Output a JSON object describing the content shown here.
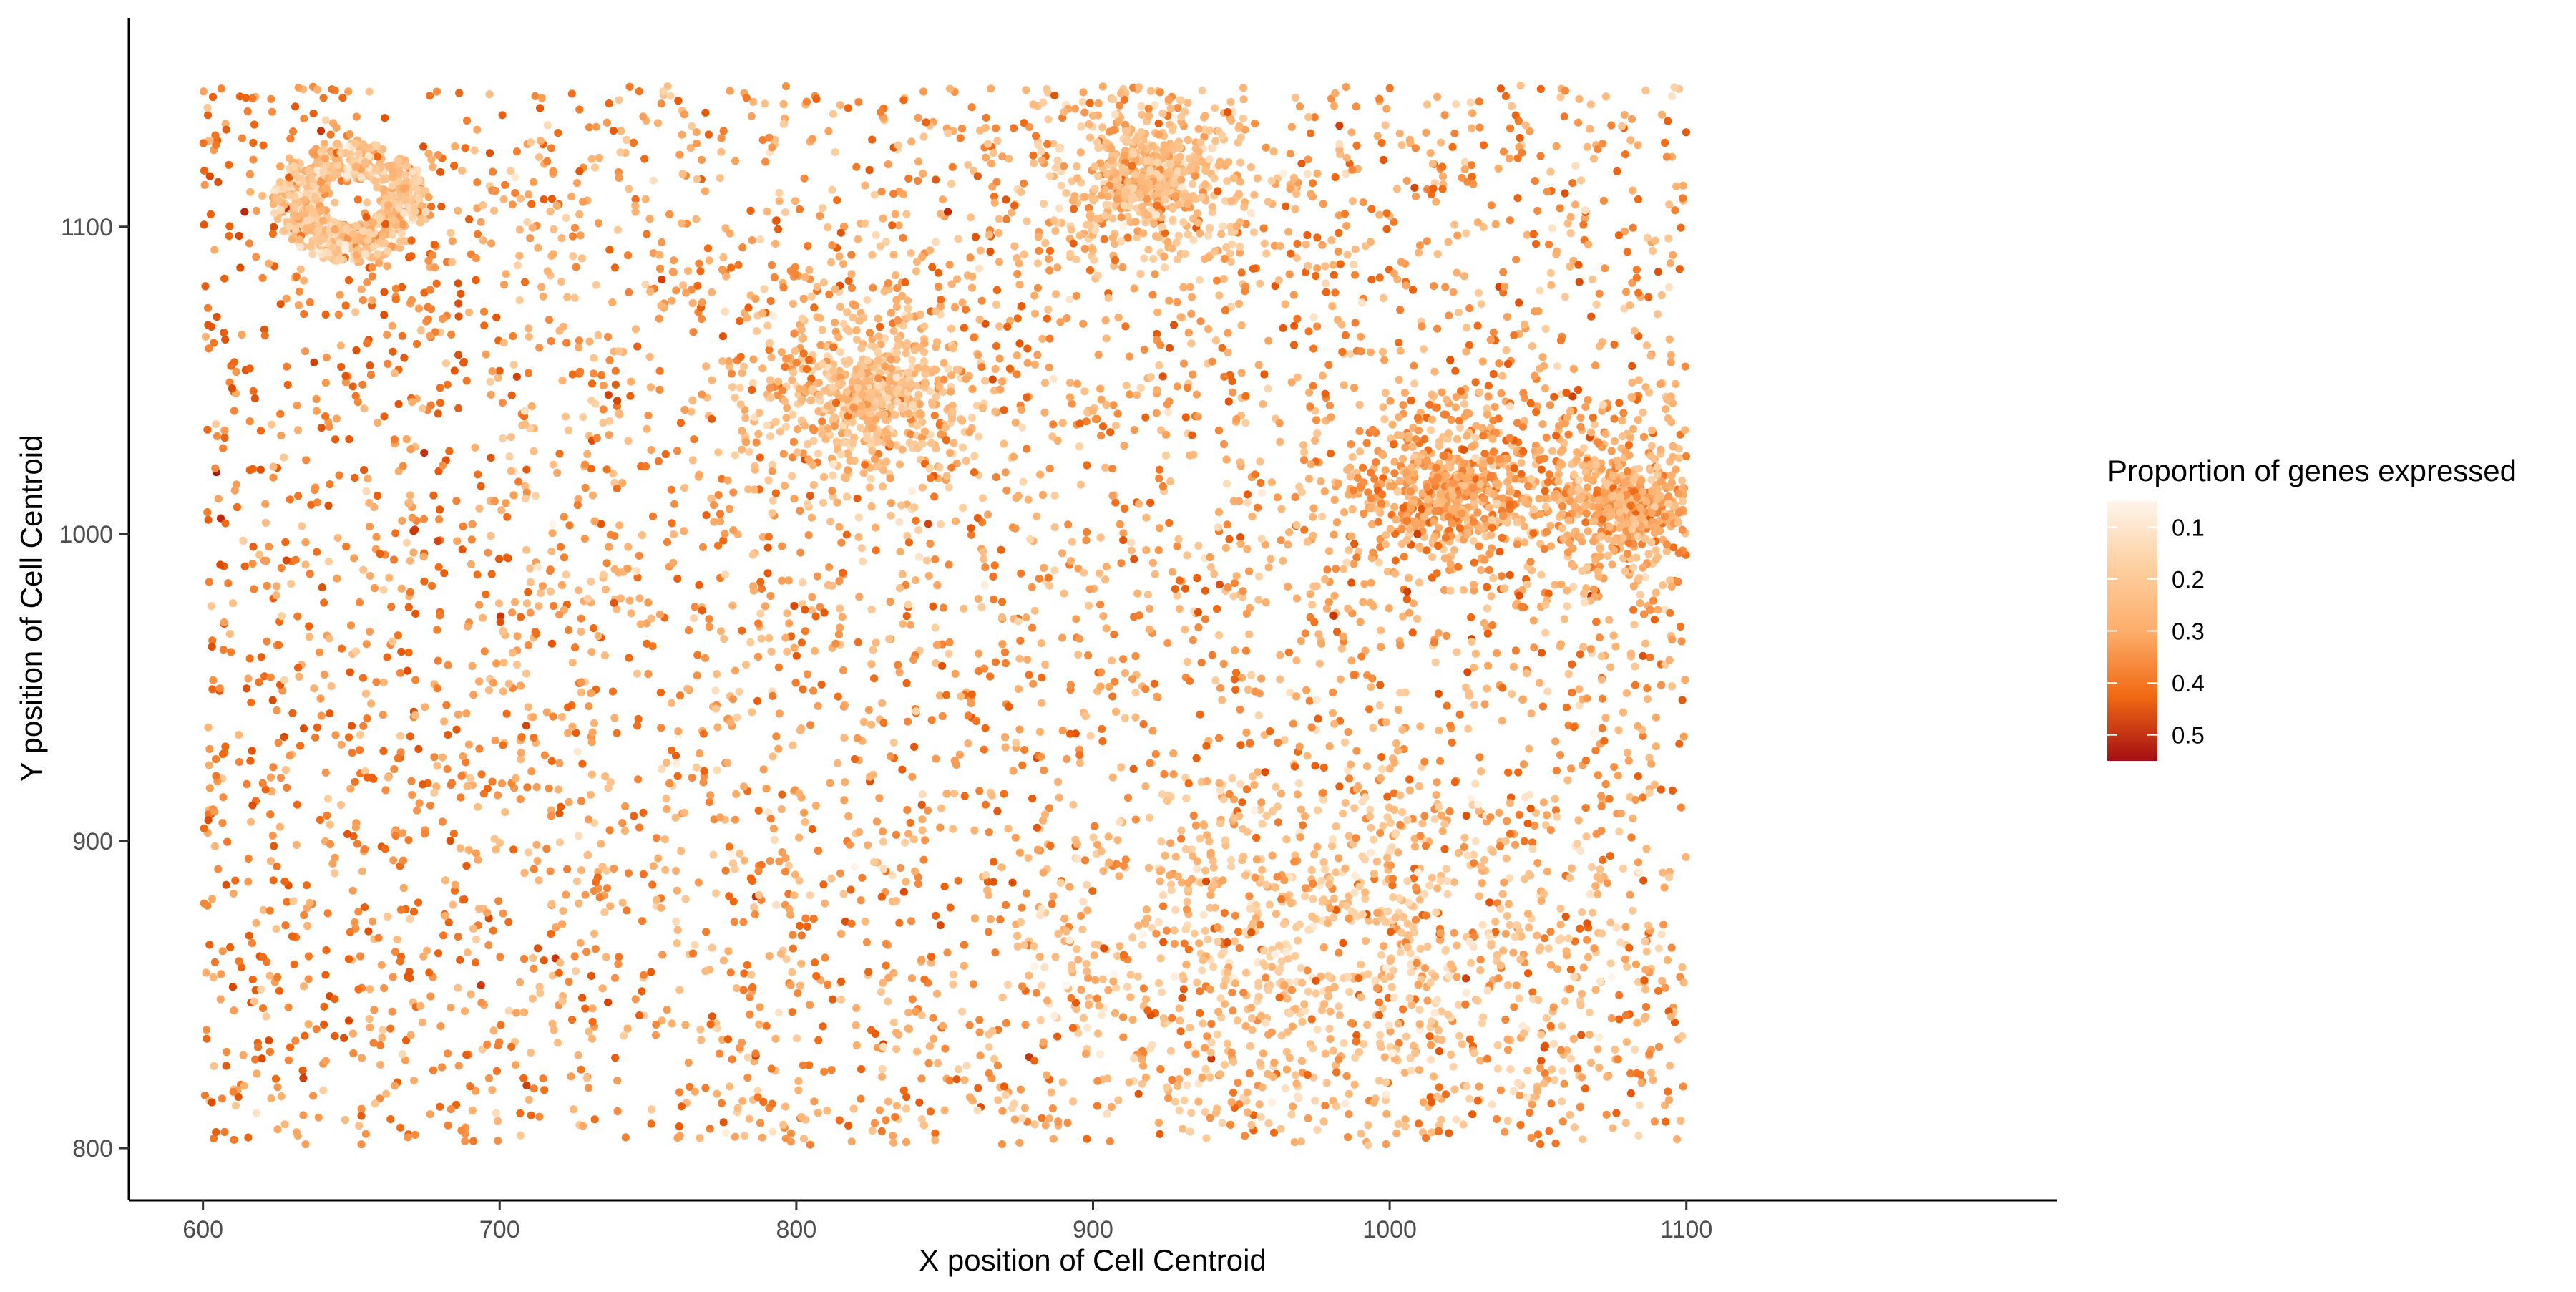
{
  "chart_data": {
    "type": "scatter",
    "title": "",
    "xlabel": "X position of Cell Centroid",
    "ylabel": "Y position of Cell Centroid",
    "xlim": [
      575,
      1225
    ],
    "ylim": [
      783,
      1168
    ],
    "x_ticks": [
      600,
      700,
      800,
      900,
      1000,
      1100
    ],
    "y_ticks": [
      800,
      900,
      1000,
      1100
    ],
    "grid": false,
    "legend": {
      "title": "Proportion of genes expressed",
      "position": "right",
      "range": [
        0.05,
        0.55
      ],
      "ticks": [
        0.1,
        0.2,
        0.3,
        0.4,
        0.5
      ],
      "low_color": "#fff5eb",
      "high_color": "#a50f15"
    },
    "colors": [
      "#fff5eb",
      "#fdd0a2",
      "#fdae6b",
      "#f16913",
      "#d94801",
      "#a50f15"
    ],
    "point_cloud": {
      "x_range": [
        600,
        1100
      ],
      "y_range": [
        801,
        1146
      ],
      "approx_count": 9000,
      "description": "dense, cell-like spatial distribution"
    },
    "dense_clusters": [
      {
        "x": 650,
        "y": 1108,
        "shape": "ring",
        "value": 0.18
      },
      {
        "x": 985,
        "y": 865,
        "shape": "large ring",
        "value": 0.17
      },
      {
        "x": 825,
        "y": 1045,
        "shape": "blob",
        "value": 0.2
      },
      {
        "x": 920,
        "y": 1115,
        "shape": "blob",
        "value": 0.2
      },
      {
        "x": 1020,
        "y": 1015,
        "shape": "blob",
        "value": 0.26
      },
      {
        "x": 1080,
        "y": 1010,
        "shape": "blob",
        "value": 0.24
      }
    ]
  }
}
